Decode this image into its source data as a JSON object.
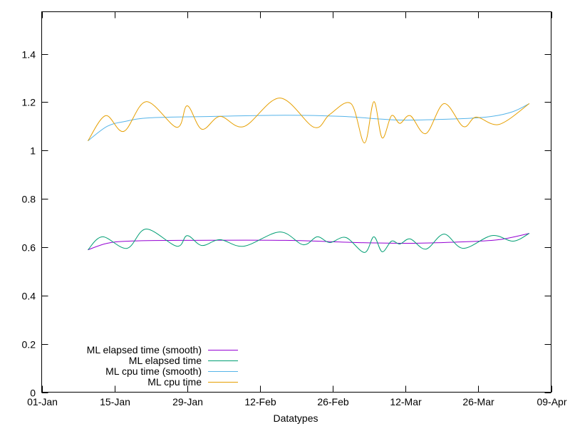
{
  "chart_data": {
    "type": "line",
    "title": "",
    "xlabel": "Datatypes",
    "ylabel": "",
    "x_units": "days since 01-Jan",
    "xlim": [
      0,
      98
    ],
    "ylim": [
      0,
      1.574
    ],
    "x_ticks": [
      {
        "value": 0,
        "label": "01-Jan"
      },
      {
        "value": 14,
        "label": "15-Jan"
      },
      {
        "value": 28,
        "label": "29-Jan"
      },
      {
        "value": 42,
        "label": "12-Feb"
      },
      {
        "value": 56,
        "label": "26-Feb"
      },
      {
        "value": 70,
        "label": "12-Mar"
      },
      {
        "value": 84,
        "label": "26-Mar"
      },
      {
        "value": 98,
        "label": "09-Apr"
      }
    ],
    "y_ticks": [
      {
        "value": 0,
        "label": "0"
      },
      {
        "value": 0.2,
        "label": "0.2"
      },
      {
        "value": 0.4,
        "label": "0.4"
      },
      {
        "value": 0.6,
        "label": "0.6"
      },
      {
        "value": 0.8,
        "label": "0.8"
      },
      {
        "value": 1.0,
        "label": "1"
      },
      {
        "value": 1.2,
        "label": "1.2"
      },
      {
        "value": 1.4,
        "label": "1.4"
      }
    ],
    "grid": false,
    "legend_position": "bottom-left",
    "series": [
      {
        "name": "ML elapsed time (smooth)",
        "color": "#9400d3",
        "x": [
          8.9,
          12.6,
          16.7,
          26.3,
          46.9,
          60.6,
          71.5,
          81.1,
          88.0,
          93.8
        ],
        "y": [
          0.589,
          0.616,
          0.625,
          0.628,
          0.628,
          0.619,
          0.616,
          0.622,
          0.631,
          0.657
        ]
      },
      {
        "name": "ML elapsed time",
        "color": "#009e73",
        "x": [
          8.9,
          11.7,
          16.4,
          20.1,
          26.0,
          28.0,
          30.8,
          34.3,
          38.9,
          45.8,
          50.3,
          53.0,
          55.4,
          58.5,
          62.1,
          63.9,
          65.5,
          67.3,
          68.9,
          70.9,
          73.9,
          77.4,
          81.1,
          86.6,
          90.7,
          93.8
        ],
        "y": [
          0.589,
          0.643,
          0.595,
          0.675,
          0.604,
          0.648,
          0.607,
          0.631,
          0.604,
          0.663,
          0.61,
          0.643,
          0.619,
          0.64,
          0.578,
          0.643,
          0.581,
          0.625,
          0.613,
          0.634,
          0.592,
          0.654,
          0.595,
          0.648,
          0.625,
          0.657
        ]
      },
      {
        "name": "ML cpu time (smooth)",
        "color": "#56b4e9",
        "x": [
          8.9,
          12.6,
          16.0,
          20.8,
          33.2,
          46.9,
          57.9,
          68.9,
          81.1,
          86.6,
          90.7,
          93.8
        ],
        "y": [
          1.04,
          1.1,
          1.12,
          1.135,
          1.141,
          1.146,
          1.141,
          1.126,
          1.132,
          1.141,
          1.161,
          1.194
        ]
      },
      {
        "name": "ML cpu time",
        "color": "#e69f00",
        "x": [
          8.9,
          12.3,
          15.8,
          20.1,
          26.0,
          28.0,
          30.8,
          34.3,
          38.9,
          45.8,
          52.4,
          55.4,
          59.5,
          62.1,
          63.9,
          65.5,
          67.3,
          68.9,
          70.9,
          73.9,
          77.4,
          81.1,
          83.6,
          88.0,
          93.8
        ],
        "y": [
          1.04,
          1.144,
          1.079,
          1.202,
          1.096,
          1.185,
          1.088,
          1.141,
          1.099,
          1.217,
          1.096,
          1.149,
          1.194,
          1.031,
          1.202,
          1.052,
          1.144,
          1.112,
          1.144,
          1.07,
          1.194,
          1.099,
          1.138,
          1.108,
          1.194
        ]
      }
    ]
  }
}
